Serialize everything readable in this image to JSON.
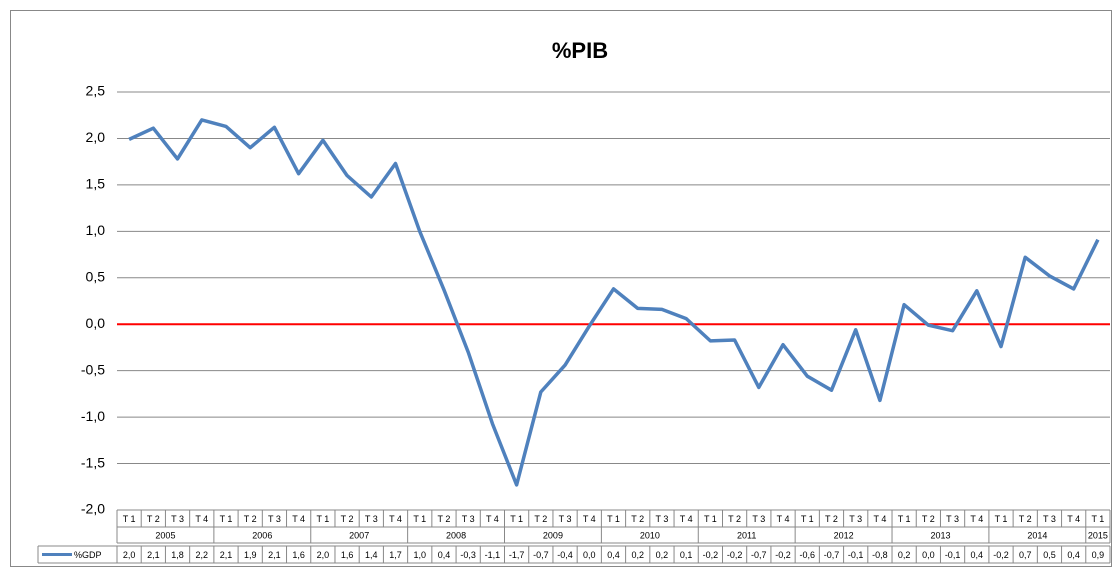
{
  "chart_data": {
    "type": "line",
    "title": "%PIB",
    "categories": [
      "T 1",
      "T 2",
      "T 3",
      "T 4",
      "T 1",
      "T 2",
      "T 3",
      "T 4",
      "T 1",
      "T 2",
      "T 3",
      "T 4",
      "T 1",
      "T 2",
      "T 3",
      "T 4",
      "T 1",
      "T 2",
      "T 3",
      "T 4",
      "T 1",
      "T 2",
      "T 3",
      "T 4",
      "T 1",
      "T 2",
      "T 3",
      "T 4",
      "T 1",
      "T 2",
      "T 3",
      "T 4",
      "T 1",
      "T 2",
      "T 3",
      "T 4",
      "T 1",
      "T 2",
      "T 3",
      "T 4",
      "T 1"
    ],
    "year_groups": [
      "2005",
      "2006",
      "2007",
      "2008",
      "2009",
      "2010",
      "2011",
      "2012",
      "2013",
      "2014",
      "2015"
    ],
    "series": [
      {
        "name": "%GDP",
        "color": "#4f81bd",
        "values": [
          1.99,
          2.11,
          1.78,
          2.2,
          2.13,
          1.9,
          2.12,
          1.62,
          1.98,
          1.6,
          1.37,
          1.73,
          1.0,
          0.37,
          -0.3,
          -1.07,
          -1.73,
          -0.73,
          -0.44,
          -0.02,
          0.38,
          0.17,
          0.16,
          0.06,
          -0.18,
          -0.17,
          -0.68,
          -0.22,
          -0.56,
          -0.71,
          -0.06,
          -0.82,
          0.21,
          -0.01,
          -0.07,
          0.36,
          -0.24,
          0.72,
          0.52,
          0.38,
          0.91
        ],
        "value_labels": [
          "2,0",
          "2,1",
          "1,8",
          "2,2",
          "2,1",
          "1,9",
          "2,1",
          "1,6",
          "2,0",
          "1,6",
          "1,4",
          "1,7",
          "1,0",
          "0,4",
          "-0,3",
          "-1,1",
          "-1,7",
          "-0,7",
          "-0,4",
          "0,0",
          "0,4",
          "0,2",
          "0,2",
          "0,1",
          "-0,2",
          "-0,2",
          "-0,7",
          "-0,2",
          "-0,6",
          "-0,7",
          "-0,1",
          "-0,8",
          "0,2",
          "0,0",
          "-0,1",
          "0,4",
          "-0,2",
          "0,7",
          "0,5",
          "0,4",
          "0,9"
        ]
      }
    ],
    "ylim": [
      -2.0,
      2.5
    ],
    "yticks": [
      {
        "value": -2.0,
        "label": "-2,0"
      },
      {
        "value": -1.5,
        "label": "-1,5"
      },
      {
        "value": -1.0,
        "label": "-1,0"
      },
      {
        "value": -0.5,
        "label": "-0,5"
      },
      {
        "value": 0.0,
        "label": "0,0"
      },
      {
        "value": 0.5,
        "label": "0,5"
      },
      {
        "value": 1.0,
        "label": "1,0"
      },
      {
        "value": 1.5,
        "label": "1,5"
      },
      {
        "value": 2.0,
        "label": "2,0"
      },
      {
        "value": 2.5,
        "label": "2,5"
      }
    ],
    "grid": true,
    "zero_line_color": "#ff0000"
  }
}
